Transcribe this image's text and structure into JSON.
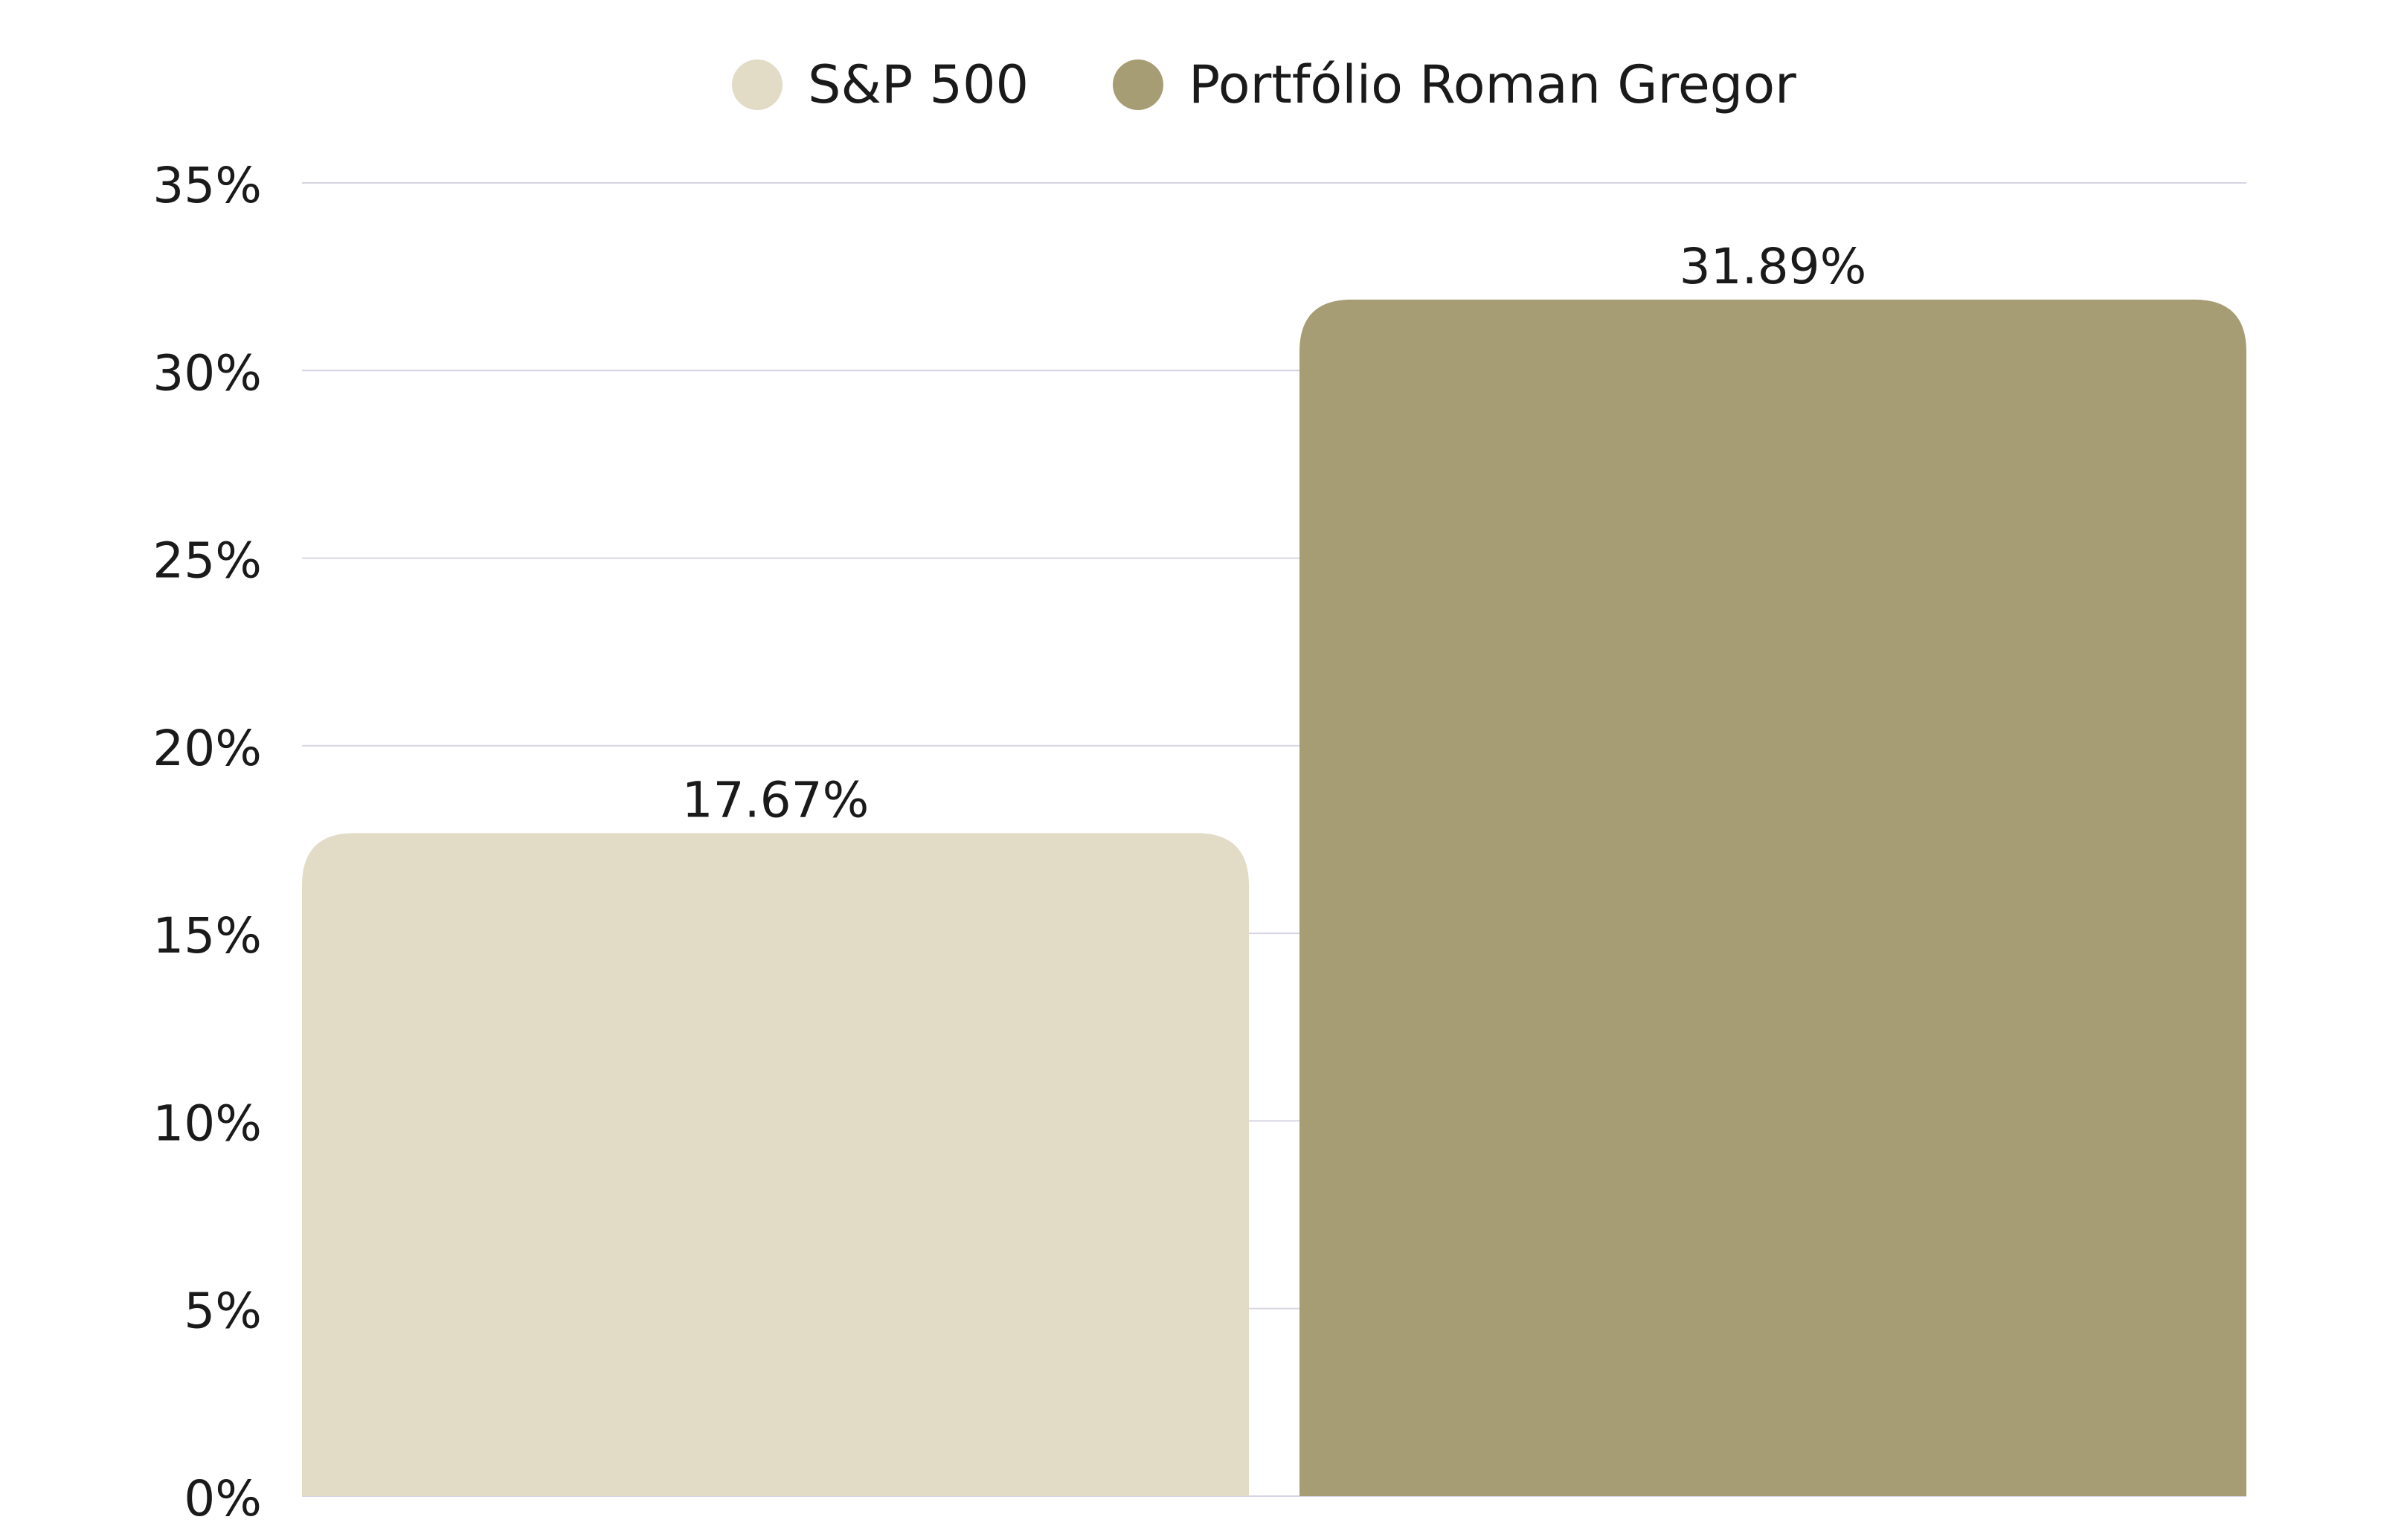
{
  "chart_data": {
    "type": "bar",
    "title": "",
    "xlabel": "",
    "ylabel": "",
    "categories": [
      "S&P 500",
      "Portfólio Roman Gregor"
    ],
    "values": [
      17.67,
      31.89
    ],
    "data_labels": [
      "17.67%",
      "31.89%"
    ],
    "colors": [
      "#E2DCC6",
      "#A79D75"
    ],
    "ylim": [
      0,
      35
    ],
    "y_ticks": [
      {
        "value": 0,
        "label": "0%"
      },
      {
        "value": 5,
        "label": "5%"
      },
      {
        "value": 10,
        "label": "10%"
      },
      {
        "value": 15,
        "label": "15%"
      },
      {
        "value": 20,
        "label": "20%"
      },
      {
        "value": 25,
        "label": "25%"
      },
      {
        "value": 30,
        "label": "30%"
      },
      {
        "value": 35,
        "label": "35%"
      }
    ],
    "grid": true,
    "gridline_color": "#D6D6E4",
    "legend": {
      "position": "top-center",
      "items": [
        {
          "label": "S&P 500",
          "color": "#E2DCC6"
        },
        {
          "label": "Portfólio Roman Gregor",
          "color": "#A79D75"
        }
      ]
    }
  }
}
